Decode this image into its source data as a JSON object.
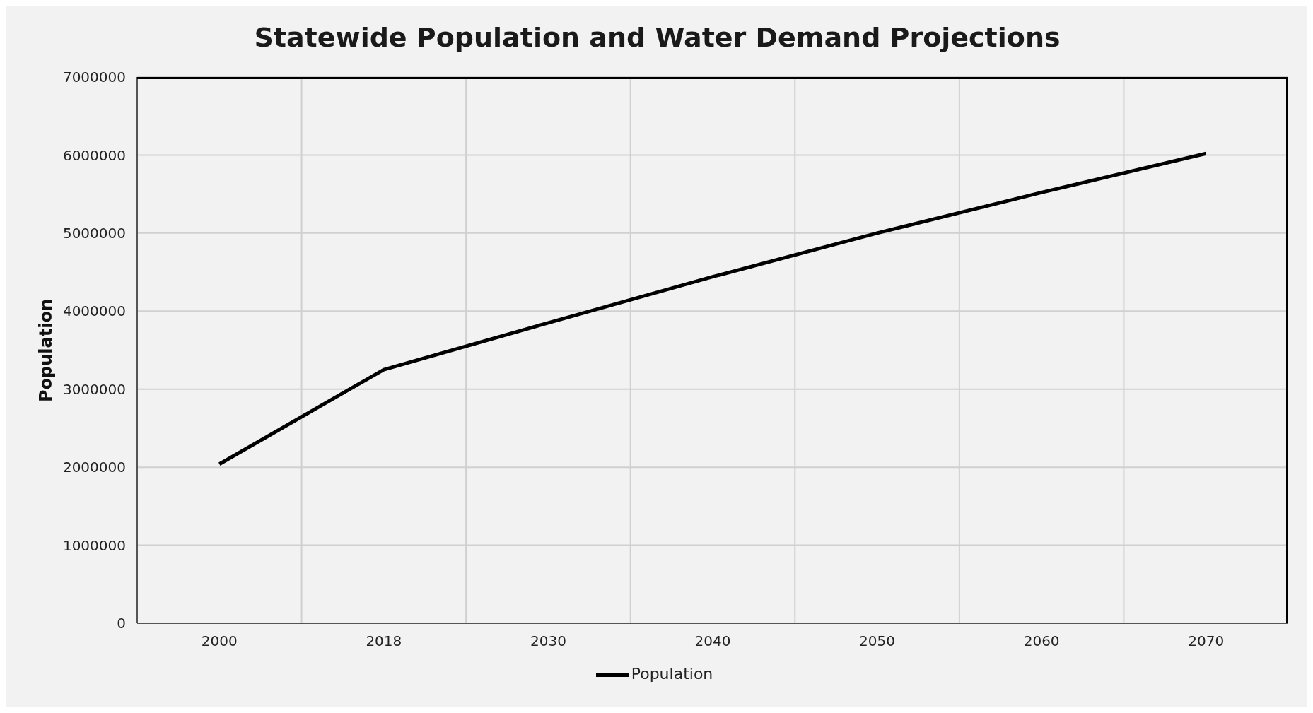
{
  "chart_data": {
    "type": "line",
    "title": "Statewide Population and Water Demand Projections",
    "ylabel": "Population",
    "categories": [
      "2000",
      "2018",
      "2030",
      "2040",
      "2050",
      "2060",
      "2070"
    ],
    "series": [
      {
        "name": "Population",
        "color": "#000000",
        "values": [
          2040000,
          3250000,
          3850000,
          4440000,
          5000000,
          5520000,
          6020000
        ]
      }
    ],
    "ylim": [
      0,
      7000000
    ],
    "yticks": [
      0,
      1000000,
      2000000,
      3000000,
      4000000,
      5000000,
      6000000,
      7000000
    ],
    "grid": true,
    "legend": "bottom",
    "marker": "none",
    "line_style": "solid"
  }
}
